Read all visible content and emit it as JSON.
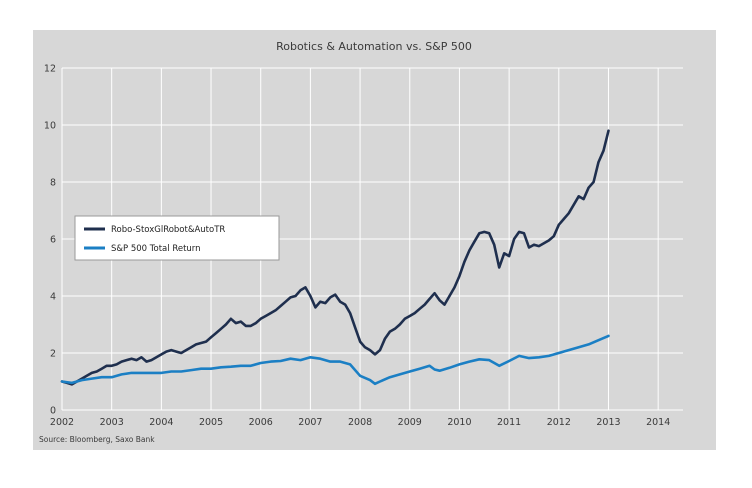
{
  "chart_data": {
    "type": "line",
    "title": "Robotics & Automation  vs. S&P 500",
    "source": "Source: Bloomberg, Saxo Bank",
    "xlabel": "",
    "ylabel": "",
    "xlim": [
      2002,
      2014.5
    ],
    "ylim": [
      0,
      12
    ],
    "xticks": [
      "2002",
      "2003",
      "2004",
      "2005",
      "2006",
      "2007",
      "2008",
      "2009",
      "2010",
      "2011",
      "2012",
      "2013",
      "2014"
    ],
    "yticks": [
      "0",
      "2",
      "4",
      "6",
      "8",
      "10",
      "12"
    ],
    "grid": true,
    "legend": "center-left",
    "series": [
      {
        "name": "Robo-StoxGlRobot&AutoTR",
        "color": "#1f2f4e",
        "points": [
          [
            2002.0,
            1.0
          ],
          [
            2002.1,
            0.95
          ],
          [
            2002.2,
            0.9
          ],
          [
            2002.3,
            1.0
          ],
          [
            2002.4,
            1.1
          ],
          [
            2002.5,
            1.2
          ],
          [
            2002.6,
            1.3
          ],
          [
            2002.7,
            1.35
          ],
          [
            2002.8,
            1.45
          ],
          [
            2002.9,
            1.55
          ],
          [
            2003.0,
            1.55
          ],
          [
            2003.1,
            1.6
          ],
          [
            2003.2,
            1.7
          ],
          [
            2003.3,
            1.75
          ],
          [
            2003.4,
            1.8
          ],
          [
            2003.5,
            1.75
          ],
          [
            2003.6,
            1.85
          ],
          [
            2003.7,
            1.7
          ],
          [
            2003.8,
            1.75
          ],
          [
            2003.9,
            1.85
          ],
          [
            2004.0,
            1.95
          ],
          [
            2004.1,
            2.05
          ],
          [
            2004.2,
            2.1
          ],
          [
            2004.3,
            2.05
          ],
          [
            2004.4,
            2.0
          ],
          [
            2004.5,
            2.1
          ],
          [
            2004.6,
            2.2
          ],
          [
            2004.7,
            2.3
          ],
          [
            2004.8,
            2.35
          ],
          [
            2004.9,
            2.4
          ],
          [
            2005.0,
            2.55
          ],
          [
            2005.1,
            2.7
          ],
          [
            2005.2,
            2.85
          ],
          [
            2005.3,
            3.0
          ],
          [
            2005.4,
            3.2
          ],
          [
            2005.5,
            3.05
          ],
          [
            2005.6,
            3.1
          ],
          [
            2005.7,
            2.95
          ],
          [
            2005.8,
            2.95
          ],
          [
            2005.9,
            3.05
          ],
          [
            2006.0,
            3.2
          ],
          [
            2006.1,
            3.3
          ],
          [
            2006.2,
            3.4
          ],
          [
            2006.3,
            3.5
          ],
          [
            2006.4,
            3.65
          ],
          [
            2006.5,
            3.8
          ],
          [
            2006.6,
            3.95
          ],
          [
            2006.7,
            4.0
          ],
          [
            2006.8,
            4.2
          ],
          [
            2006.9,
            4.3
          ],
          [
            2007.0,
            4.0
          ],
          [
            2007.1,
            3.6
          ],
          [
            2007.2,
            3.8
          ],
          [
            2007.3,
            3.75
          ],
          [
            2007.4,
            3.95
          ],
          [
            2007.5,
            4.05
          ],
          [
            2007.6,
            3.8
          ],
          [
            2007.7,
            3.7
          ],
          [
            2007.8,
            3.4
          ],
          [
            2007.9,
            2.9
          ],
          [
            2008.0,
            2.4
          ],
          [
            2008.1,
            2.2
          ],
          [
            2008.2,
            2.1
          ],
          [
            2008.3,
            1.95
          ],
          [
            2008.4,
            2.1
          ],
          [
            2008.5,
            2.5
          ],
          [
            2008.6,
            2.75
          ],
          [
            2008.7,
            2.85
          ],
          [
            2008.8,
            3.0
          ],
          [
            2008.9,
            3.2
          ],
          [
            2009.0,
            3.3
          ],
          [
            2009.1,
            3.4
          ],
          [
            2009.2,
            3.55
          ],
          [
            2009.3,
            3.7
          ],
          [
            2009.4,
            3.9
          ],
          [
            2009.5,
            4.1
          ],
          [
            2009.6,
            3.85
          ],
          [
            2009.7,
            3.7
          ],
          [
            2009.8,
            4.0
          ],
          [
            2009.9,
            4.3
          ],
          [
            2010.0,
            4.7
          ],
          [
            2010.1,
            5.2
          ],
          [
            2010.2,
            5.6
          ],
          [
            2010.3,
            5.9
          ],
          [
            2010.4,
            6.2
          ],
          [
            2010.5,
            6.25
          ],
          [
            2010.6,
            6.2
          ],
          [
            2010.7,
            5.8
          ],
          [
            2010.8,
            5.0
          ],
          [
            2010.9,
            5.5
          ],
          [
            2011.0,
            5.4
          ],
          [
            2011.1,
            6.0
          ],
          [
            2011.2,
            6.25
          ],
          [
            2011.3,
            6.2
          ],
          [
            2011.4,
            5.7
          ],
          [
            2011.5,
            5.8
          ],
          [
            2011.6,
            5.75
          ],
          [
            2011.7,
            5.85
          ],
          [
            2011.8,
            5.95
          ],
          [
            2011.9,
            6.1
          ],
          [
            2012.0,
            6.5
          ],
          [
            2012.1,
            6.7
          ],
          [
            2012.2,
            6.9
          ],
          [
            2012.3,
            7.2
          ],
          [
            2012.4,
            7.5
          ],
          [
            2012.5,
            7.4
          ],
          [
            2012.6,
            7.8
          ],
          [
            2012.7,
            8.0
          ],
          [
            2012.8,
            8.7
          ],
          [
            2012.9,
            9.1
          ],
          [
            2013.0,
            9.8
          ]
        ]
      },
      {
        "name": "S&P 500 Total Return",
        "color": "#1b7fc4",
        "points": [
          [
            2002.0,
            1.0
          ],
          [
            2002.2,
            0.95
          ],
          [
            2002.4,
            1.05
          ],
          [
            2002.6,
            1.1
          ],
          [
            2002.8,
            1.15
          ],
          [
            2003.0,
            1.15
          ],
          [
            2003.2,
            1.25
          ],
          [
            2003.4,
            1.3
          ],
          [
            2003.6,
            1.3
          ],
          [
            2003.8,
            1.3
          ],
          [
            2004.0,
            1.3
          ],
          [
            2004.2,
            1.35
          ],
          [
            2004.4,
            1.35
          ],
          [
            2004.6,
            1.4
          ],
          [
            2004.8,
            1.45
          ],
          [
            2005.0,
            1.45
          ],
          [
            2005.2,
            1.5
          ],
          [
            2005.4,
            1.52
          ],
          [
            2005.6,
            1.55
          ],
          [
            2005.8,
            1.55
          ],
          [
            2006.0,
            1.65
          ],
          [
            2006.2,
            1.7
          ],
          [
            2006.4,
            1.72
          ],
          [
            2006.6,
            1.8
          ],
          [
            2006.8,
            1.75
          ],
          [
            2007.0,
            1.85
          ],
          [
            2007.2,
            1.8
          ],
          [
            2007.4,
            1.7
          ],
          [
            2007.6,
            1.7
          ],
          [
            2007.8,
            1.6
          ],
          [
            2008.0,
            1.2
          ],
          [
            2008.2,
            1.05
          ],
          [
            2008.3,
            0.92
          ],
          [
            2008.4,
            1.0
          ],
          [
            2008.6,
            1.15
          ],
          [
            2008.8,
            1.25
          ],
          [
            2009.0,
            1.35
          ],
          [
            2009.2,
            1.45
          ],
          [
            2009.4,
            1.55
          ],
          [
            2009.5,
            1.42
          ],
          [
            2009.6,
            1.38
          ],
          [
            2009.8,
            1.48
          ],
          [
            2010.0,
            1.6
          ],
          [
            2010.2,
            1.7
          ],
          [
            2010.4,
            1.78
          ],
          [
            2010.6,
            1.75
          ],
          [
            2010.8,
            1.55
          ],
          [
            2011.0,
            1.72
          ],
          [
            2011.2,
            1.9
          ],
          [
            2011.4,
            1.82
          ],
          [
            2011.6,
            1.85
          ],
          [
            2011.8,
            1.9
          ],
          [
            2012.0,
            2.0
          ],
          [
            2012.2,
            2.1
          ],
          [
            2012.4,
            2.2
          ],
          [
            2012.6,
            2.3
          ],
          [
            2012.8,
            2.45
          ],
          [
            2013.0,
            2.6
          ]
        ]
      }
    ]
  }
}
